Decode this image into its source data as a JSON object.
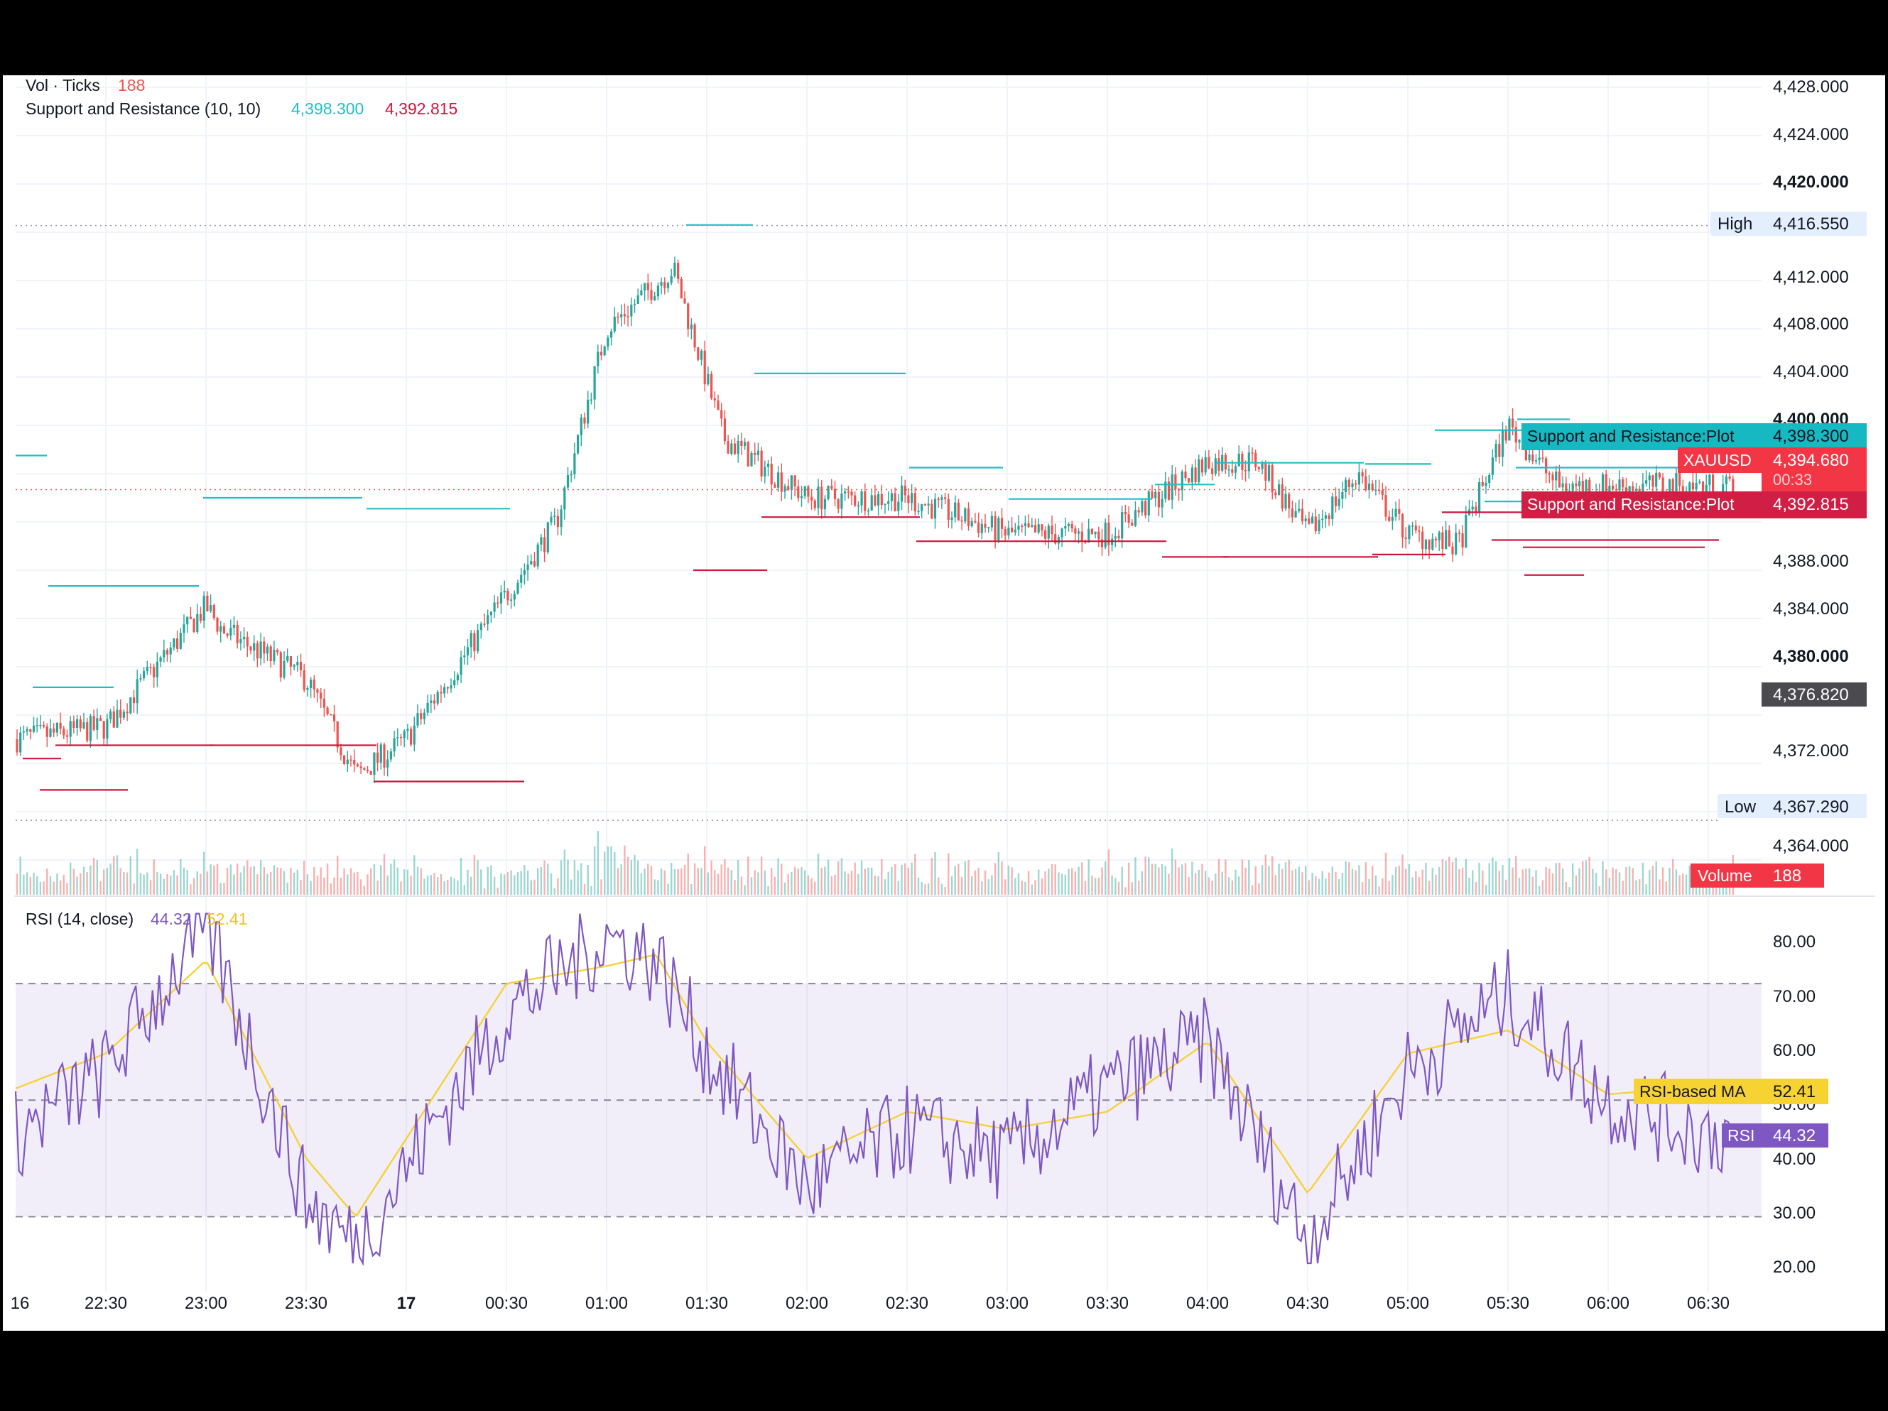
{
  "colors": {
    "up": "#26a69a",
    "down": "#ef5350",
    "support": "#1fbfc4",
    "resistance": "#d0143c",
    "rsi": "#7e57c2",
    "rsi_ma": "#f5d13a",
    "grid": "#f0f3fa",
    "text": "#131722",
    "axis_text": "#131722",
    "bar_black": "#000000"
  },
  "legends": {
    "vol_label": "Vol · Ticks",
    "vol_value": "188",
    "sr_label": "Support and Resistance (10, 10)",
    "sr_support_value": "4,398.300",
    "sr_resistance_value": "4,392.815",
    "rsi_label": "RSI (14, close)",
    "rsi_value": "44.32",
    "rsi_ma_value": "52.41"
  },
  "price_axis": {
    "ticks": [
      "4,428.000",
      "4,424.000",
      "4,420.000",
      "4,412.000",
      "4,408.000",
      "4,404.000",
      "4,400.000",
      "4,388.000",
      "4,384.000",
      "4,380.000",
      "4,372.000",
      "4,364.000"
    ],
    "bold_ticks": [
      "4,420.000",
      "4,400.000",
      "4,380.000"
    ]
  },
  "price_badges": {
    "high_label": "High",
    "high_value": "4,416.550",
    "low_label": "Low",
    "low_value": "4,367.290",
    "support_label": "Support and Resistance:Plot",
    "support_value": "4,398.300",
    "symbol_label": "XAUUSD",
    "symbol_value": "4,394.680",
    "countdown": "00:33",
    "resistance_label": "Support and Resistance:Plot",
    "resistance_value": "4,392.815",
    "crosshair_value": "4,376.820",
    "volume_label": "Volume",
    "volume_value": "188"
  },
  "rsi_axis": {
    "ticks": [
      "80.00",
      "70.00",
      "60.00",
      "50.00",
      "40.00",
      "30.00",
      "20.00"
    ]
  },
  "rsi_badges": {
    "ma_label": "RSI-based MA",
    "ma_value": "52.41",
    "rsi_label": "RSI",
    "rsi_value": "44.32"
  },
  "time_axis": {
    "labels": [
      "16",
      "22:30",
      "23:00",
      "23:30",
      "17",
      "00:30",
      "01:00",
      "01:30",
      "02:00",
      "02:30",
      "03:00",
      "03:30",
      "04:00",
      "04:30",
      "05:00",
      "05:30",
      "06:00",
      "06:30"
    ]
  },
  "chart_data": [
    {
      "type": "candlestick",
      "symbol": "XAUUSD",
      "price_range": [
        4361,
        4429
      ],
      "high": 4416.55,
      "low": 4367.29,
      "last_price": 4394.68,
      "close_path_x": [
        "16",
        "22:30",
        "23:00",
        "23:05",
        "23:30",
        "23:45",
        "00:00",
        "00:30",
        "00:45",
        "01:00",
        "01:20",
        "01:35",
        "02:00",
        "02:30",
        "03:00",
        "03:30",
        "04:00",
        "04:15",
        "04:30",
        "04:45",
        "05:00",
        "05:15",
        "05:30",
        "05:45",
        "06:30"
      ],
      "close_path_y": [
        4374,
        4375,
        4385,
        4383,
        4379,
        4371,
        4374,
        4386,
        4392,
        4408,
        4413,
        4399,
        4394,
        4394,
        4391,
        4391,
        4397,
        4397,
        4391,
        4396,
        4391,
        4390,
        4400,
        4395,
        4395
      ],
      "support_levels": [
        4397.5,
        4386.7,
        4394.0,
        4378.3,
        4393.1,
        4416.6,
        4404.3,
        4396.5,
        4393.9,
        4395.1,
        4396.9,
        4396.8,
        4399.6,
        4396.5,
        4393.7,
        4400.5
      ],
      "resistance_levels": [
        4372.4,
        4373.5,
        4373.5,
        4369.8,
        4370.5,
        4388.0,
        4392.4,
        4390.4,
        4390.4,
        4389.1,
        4389.1,
        4389.3,
        4392.8,
        4389.9,
        4390.5,
        4387.6
      ]
    },
    {
      "type": "bar",
      "name": "Volume",
      "last_value": 188
    },
    {
      "type": "line",
      "name": "RSI",
      "ylim": [
        17,
        85
      ],
      "bands": [
        30,
        50,
        70
      ],
      "last_value": 44.32,
      "x": [
        "16",
        "22:30",
        "23:00",
        "23:30",
        "23:45",
        "00:30",
        "01:00",
        "01:15",
        "01:30",
        "02:00",
        "02:30",
        "03:00",
        "03:30",
        "04:00",
        "04:30",
        "05:00",
        "05:30",
        "06:00",
        "06:30"
      ],
      "values": [
        44,
        55,
        80,
        33,
        25,
        65,
        78,
        74,
        58,
        35,
        45,
        40,
        52,
        60,
        26,
        55,
        68,
        50,
        44.32
      ]
    },
    {
      "type": "line",
      "name": "RSI-based MA",
      "last_value": 52.41,
      "x": [
        "16",
        "22:30",
        "23:00",
        "23:30",
        "23:45",
        "00:30",
        "01:00",
        "01:15",
        "01:30",
        "02:00",
        "02:30",
        "03:00",
        "03:30",
        "04:00",
        "04:30",
        "05:00",
        "05:30",
        "06:00",
        "06:30"
      ],
      "values": [
        52,
        58,
        74,
        40,
        30,
        70,
        73,
        75,
        60,
        40,
        48,
        45,
        48,
        60,
        34,
        58,
        62,
        51,
        52.41
      ]
    }
  ]
}
